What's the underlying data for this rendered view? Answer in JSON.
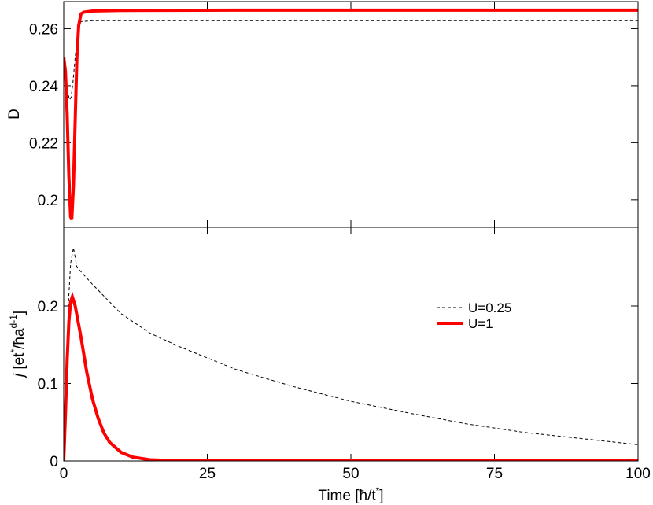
{
  "chart_data": [
    {
      "type": "line",
      "ylabel": "D",
      "xlim": [
        0,
        100
      ],
      "xticks": [
        0,
        25,
        50,
        75,
        100
      ],
      "ylim": [
        0.1903,
        0.2695
      ],
      "yticks": [
        0.2,
        0.22,
        0.24,
        0.26
      ],
      "series": [
        {
          "style": "dashed",
          "color": "#000000",
          "width": 1,
          "x": [
            0,
            0.3,
            0.6,
            1,
            1.3,
            1.6,
            2,
            2.4,
            3,
            5,
            10,
            30,
            60,
            100
          ],
          "values": [
            0.25,
            0.246,
            0.239,
            0.235,
            0.236,
            0.241,
            0.25,
            0.258,
            0.2625,
            0.2628,
            0.2628,
            0.2628,
            0.2628,
            0.2628
          ]
        },
        {
          "style": "solid",
          "color": "#ff0000",
          "width": 4,
          "x": [
            0,
            0.3,
            0.6,
            0.9,
            1.2,
            1.4,
            1.7,
            2,
            2.3,
            2.6,
            3,
            3.5,
            5,
            10,
            30,
            60,
            100
          ],
          "values": [
            0.25,
            0.245,
            0.23,
            0.208,
            0.194,
            0.193,
            0.205,
            0.228,
            0.25,
            0.261,
            0.2652,
            0.2658,
            0.2662,
            0.2664,
            0.2665,
            0.2665,
            0.2665
          ]
        }
      ]
    },
    {
      "type": "line",
      "ylabel": [
        "j",
        " [et",
        "*",
        "/ħa",
        "d-1",
        "]"
      ],
      "xlabel": [
        "Time [ħ/t",
        "*",
        "]"
      ],
      "xlim": [
        0,
        100
      ],
      "xticks": [
        0,
        25,
        50,
        75,
        100
      ],
      "ylim": [
        0,
        0.3015
      ],
      "yticks": [
        0,
        0.1,
        0.2
      ],
      "legend": "center-right",
      "series": [
        {
          "name": "U=0.25",
          "style": "dashed",
          "color": "#000000",
          "width": 1,
          "x": [
            0,
            0.4,
            0.8,
            1.2,
            1.7,
            2.3,
            5,
            10,
            15,
            20,
            25,
            30,
            40,
            50,
            60,
            70,
            80,
            90,
            100
          ],
          "values": [
            0,
            0.1,
            0.2,
            0.255,
            0.275,
            0.25,
            0.228,
            0.19,
            0.165,
            0.148,
            0.133,
            0.118,
            0.096,
            0.077,
            0.062,
            0.048,
            0.037,
            0.029,
            0.021
          ]
        },
        {
          "name": "U=1",
          "style": "solid",
          "color": "#ff0000",
          "width": 4,
          "x": [
            0,
            0.3,
            0.6,
            0.9,
            1.2,
            1.5,
            2,
            3,
            4,
            5,
            6,
            7,
            8,
            10,
            12,
            15,
            20,
            50,
            100
          ],
          "values": [
            0,
            0.06,
            0.13,
            0.18,
            0.205,
            0.212,
            0.2,
            0.16,
            0.115,
            0.08,
            0.055,
            0.036,
            0.024,
            0.011,
            0.005,
            0.0015,
            0.0003,
            0,
            0
          ]
        }
      ]
    }
  ]
}
